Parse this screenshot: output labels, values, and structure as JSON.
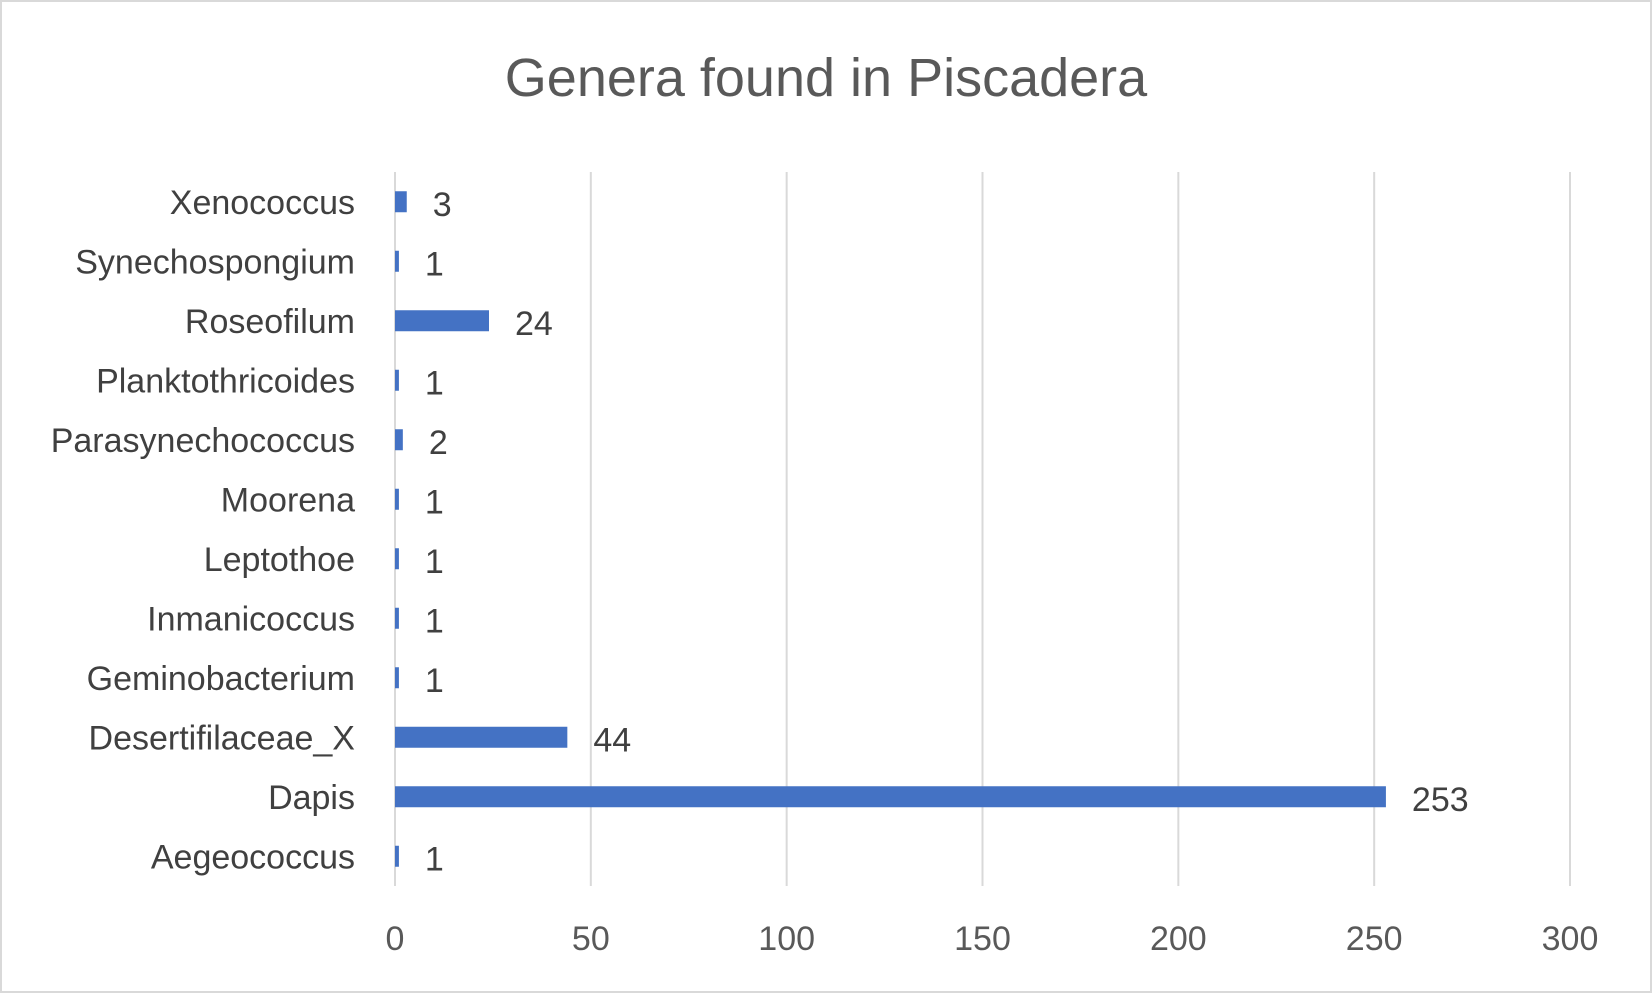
{
  "chart_data": {
    "type": "bar",
    "orientation": "horizontal",
    "title": "Genera found in Piscadera",
    "xlabel": "",
    "ylabel": "",
    "categories": [
      "Aegeococcus",
      "Dapis",
      "Desertifilaceae_X",
      "Geminobacterium",
      "Inmanicoccus",
      "Leptothoe",
      "Moorena",
      "Parasynechococcus",
      "Planktothricoides",
      "Roseofilum",
      "Synechospongium",
      "Xenococcus"
    ],
    "values": [
      1,
      253,
      44,
      1,
      1,
      1,
      1,
      2,
      1,
      24,
      1,
      3
    ],
    "xlim": [
      0,
      300
    ],
    "xticks": [
      0,
      50,
      100,
      150,
      200,
      250,
      300
    ],
    "grid": "vertical",
    "legend": "none",
    "data_labels": true,
    "bar_color": "#4472c4"
  }
}
